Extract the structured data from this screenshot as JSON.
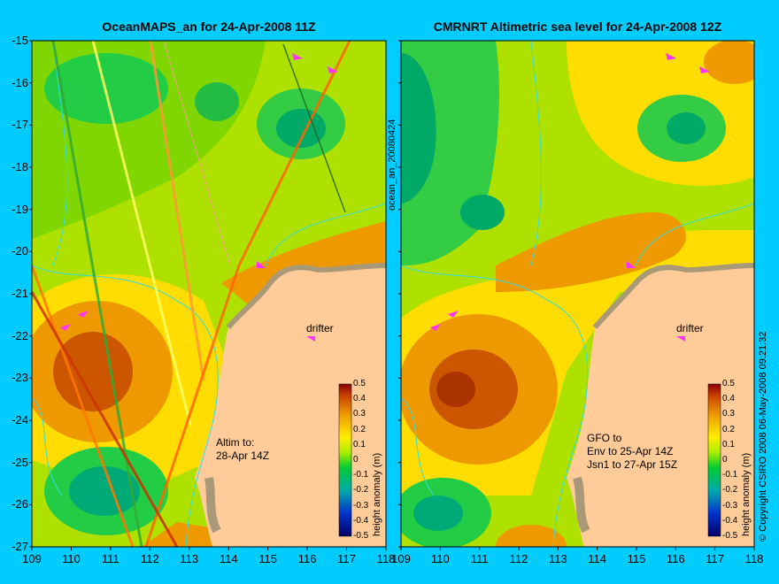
{
  "left_panel": {
    "title": "OceanMAPS_an for 24-Apr-2008 11Z",
    "note_lines": [
      "Altim to:",
      "28-Apr 14Z"
    ],
    "drifter_label": "drifter"
  },
  "right_panel": {
    "title": "CMRNRT Altimetric sea level  for 24-Apr-2008 12Z",
    "note_lines": [
      "GFO to",
      "Env to 25-Apr 14Z",
      "Jsn1 to 27-Apr 15Z"
    ],
    "drifter_label": "drifter"
  },
  "side_label": "ocean_an_20080424",
  "copyright": "© Copyright CSIRO 2008   06-May-2008 09:21:32",
  "axes": {
    "x_ticks": [
      "109",
      "110",
      "111",
      "112",
      "113",
      "114",
      "115",
      "116",
      "117",
      "118"
    ],
    "y_ticks": [
      "-15",
      "-16",
      "-17",
      "-18",
      "-19",
      "-20",
      "-21",
      "-22",
      "-23",
      "-24",
      "-25",
      "-26",
      "-27"
    ],
    "xlim": [
      109,
      118
    ],
    "ylim": [
      -27,
      -15
    ]
  },
  "colorbar": {
    "label": "height anomaly (m)",
    "ticks": [
      "0.5",
      "0.4",
      "0.3",
      "0.2",
      "0.1",
      "0",
      "-0.1",
      "-0.2",
      "-0.3",
      "-0.4",
      "-0.5"
    ],
    "range": [
      -0.5,
      0.5
    ]
  },
  "colors": {
    "background": "#00ccff",
    "land": "#ffcc99",
    "shelf": "#b8a890",
    "field_base": "#aee000",
    "drifter": "#ff33ff"
  }
}
